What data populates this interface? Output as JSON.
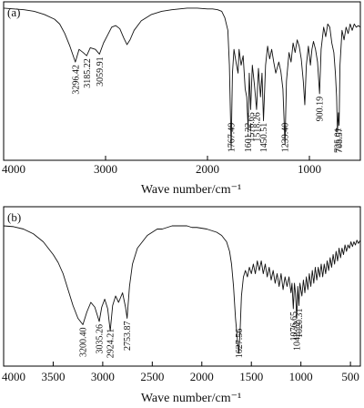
{
  "chart_data": [
    {
      "type": "line",
      "panel_label": "(a)",
      "xlabel": "Wave number/cm⁻¹",
      "ylabel": "",
      "xlim": [
        4000,
        500
      ],
      "x_reversed": true,
      "xticks": [
        {
          "value": 4000,
          "label": "4000"
        },
        {
          "value": 3000,
          "label": "3000"
        },
        {
          "value": 2000,
          "label": "2000"
        },
        {
          "value": 1000,
          "label": "1000"
        }
      ],
      "grid": false,
      "ylim": [
        0,
        100
      ],
      "series": [
        {
          "points": [
            [
              4000,
              96
            ],
            [
              3900,
              95.5
            ],
            [
              3800,
              95
            ],
            [
              3700,
              94
            ],
            [
              3600,
              92
            ],
            [
              3500,
              89
            ],
            [
              3450,
              86
            ],
            [
              3400,
              80
            ],
            [
              3350,
              72
            ],
            [
              3296.42,
              62
            ],
            [
              3260,
              70
            ],
            [
              3220,
              68
            ],
            [
              3185.22,
              66
            ],
            [
              3150,
              71
            ],
            [
              3100,
              70
            ],
            [
              3059.91,
              67
            ],
            [
              3020,
              74
            ],
            [
              2980,
              79
            ],
            [
              2940,
              84
            ],
            [
              2900,
              85
            ],
            [
              2860,
              83
            ],
            [
              2820,
              77
            ],
            [
              2790,
              73
            ],
            [
              2760,
              76
            ],
            [
              2720,
              82
            ],
            [
              2650,
              88
            ],
            [
              2550,
              92
            ],
            [
              2450,
              94
            ],
            [
              2350,
              95
            ],
            [
              2200,
              96
            ],
            [
              2100,
              96
            ],
            [
              2000,
              95.5
            ],
            [
              1950,
              95.5
            ],
            [
              1900,
              95
            ],
            [
              1860,
              94
            ],
            [
              1830,
              90
            ],
            [
              1800,
              82
            ],
            [
              1785,
              60
            ],
            [
              1767.49,
              7
            ],
            [
              1755,
              55
            ],
            [
              1740,
              70
            ],
            [
              1720,
              62
            ],
            [
              1700,
              55
            ],
            [
              1690,
              70
            ],
            [
              1670,
              60
            ],
            [
              1650,
              66
            ],
            [
              1630,
              45
            ],
            [
              1615,
              40
            ],
            [
              1601.22,
              20
            ],
            [
              1590,
              55
            ],
            [
              1576.65,
              32
            ],
            [
              1560,
              60
            ],
            [
              1540,
              48
            ],
            [
              1518.26,
              32
            ],
            [
              1500,
              58
            ],
            [
              1480,
              40
            ],
            [
              1465,
              55
            ],
            [
              1450.51,
              25
            ],
            [
              1430,
              60
            ],
            [
              1410,
              72
            ],
            [
              1390,
              64
            ],
            [
              1370,
              70
            ],
            [
              1350,
              62
            ],
            [
              1330,
              55
            ],
            [
              1300,
              62
            ],
            [
              1280,
              56
            ],
            [
              1260,
              45
            ],
            [
              1239.4,
              10
            ],
            [
              1225,
              50
            ],
            [
              1200,
              68
            ],
            [
              1180,
              62
            ],
            [
              1160,
              74
            ],
            [
              1140,
              68
            ],
            [
              1120,
              76
            ],
            [
              1100,
              72
            ],
            [
              1080,
              64
            ],
            [
              1060,
              50
            ],
            [
              1045,
              35
            ],
            [
              1030,
              60
            ],
            [
              1010,
              72
            ],
            [
              990,
              60
            ],
            [
              975,
              70
            ],
            [
              960,
              75
            ],
            [
              940,
              70
            ],
            [
              920,
              62
            ],
            [
              900.19,
              42
            ],
            [
              885,
              70
            ],
            [
              860,
              84
            ],
            [
              840,
              78
            ],
            [
              820,
              86
            ],
            [
              800,
              84
            ],
            [
              780,
              74
            ],
            [
              760,
              68
            ],
            [
              745,
              55
            ],
            [
              733,
              40
            ],
            [
              725.01,
              18
            ],
            [
              715,
              30
            ],
            [
              708.57,
              22
            ],
            [
              700,
              60
            ],
            [
              680,
              82
            ],
            [
              660,
              76
            ],
            [
              640,
              84
            ],
            [
              620,
              80
            ],
            [
              600,
              86
            ],
            [
              580,
              82
            ],
            [
              560,
              86
            ],
            [
              540,
              84
            ],
            [
              520,
              85
            ],
            [
              500,
              84
            ]
          ]
        }
      ],
      "peak_labels": [
        {
          "x": 3296.42,
          "label": "3296.42"
        },
        {
          "x": 3185.22,
          "label": "3185.22"
        },
        {
          "x": 3059.91,
          "label": "3059.91"
        },
        {
          "x": 1767.49,
          "label": "1767.49"
        },
        {
          "x": 1601.22,
          "label": "1601.22"
        },
        {
          "x": 1576.65,
          "label": "1576.65"
        },
        {
          "x": 1518.26,
          "label": "1518.26"
        },
        {
          "x": 1450.51,
          "label": "1450.51"
        },
        {
          "x": 1239.4,
          "label": "1239.40"
        },
        {
          "x": 900.19,
          "label": "900.19"
        },
        {
          "x": 725.01,
          "label": "725.01"
        },
        {
          "x": 708.57,
          "label": "708.57"
        }
      ]
    },
    {
      "type": "line",
      "panel_label": "(b)",
      "xlabel": "Wave number/cm⁻¹",
      "ylabel": "",
      "xlim": [
        4000,
        400
      ],
      "x_reversed": true,
      "xticks": [
        {
          "value": 4000,
          "label": "4000"
        },
        {
          "value": 3500,
          "label": "3500"
        },
        {
          "value": 3000,
          "label": "3000"
        },
        {
          "value": 2500,
          "label": "2500"
        },
        {
          "value": 2000,
          "label": "2000"
        },
        {
          "value": 1500,
          "label": "1500"
        },
        {
          "value": 1000,
          "label": "1000"
        },
        {
          "value": 500,
          "label": "500"
        }
      ],
      "grid": false,
      "ylim": [
        0,
        100
      ],
      "series": [
        {
          "points": [
            [
              4000,
              88
            ],
            [
              3900,
              87.5
            ],
            [
              3800,
              86
            ],
            [
              3700,
              83
            ],
            [
              3600,
              78
            ],
            [
              3500,
              70
            ],
            [
              3450,
              65
            ],
            [
              3400,
              58
            ],
            [
              3350,
              48
            ],
            [
              3300,
              38
            ],
            [
              3250,
              30
            ],
            [
              3200.4,
              26
            ],
            [
              3160,
              34
            ],
            [
              3120,
              40
            ],
            [
              3080,
              37
            ],
            [
              3050,
              31
            ],
            [
              3035.26,
              28
            ],
            [
              3010,
              37
            ],
            [
              2980,
              42
            ],
            [
              2950,
              36
            ],
            [
              2924.21,
              22
            ],
            [
              2900,
              38
            ],
            [
              2870,
              44
            ],
            [
              2840,
              40
            ],
            [
              2800,
              46
            ],
            [
              2770,
              37
            ],
            [
              2753.87,
              30
            ],
            [
              2730,
              50
            ],
            [
              2700,
              64
            ],
            [
              2650,
              74
            ],
            [
              2600,
              78
            ],
            [
              2550,
              82
            ],
            [
              2500,
              84
            ],
            [
              2450,
              86
            ],
            [
              2400,
              86
            ],
            [
              2350,
              87
            ],
            [
              2300,
              88
            ],
            [
              2250,
              88
            ],
            [
              2200,
              88
            ],
            [
              2150,
              88
            ],
            [
              2100,
              87
            ],
            [
              2050,
              87
            ],
            [
              2000,
              86.5
            ],
            [
              1950,
              86
            ],
            [
              1900,
              85
            ],
            [
              1850,
              84
            ],
            [
              1800,
              82
            ],
            [
              1750,
              78
            ],
            [
              1720,
              72
            ],
            [
              1700,
              64
            ],
            [
              1680,
              50
            ],
            [
              1660,
              30
            ],
            [
              1640,
              16
            ],
            [
              1627.56,
              8
            ],
            [
              1615,
              20
            ],
            [
              1600,
              44
            ],
            [
              1580,
              56
            ],
            [
              1560,
              60
            ],
            [
              1540,
              56
            ],
            [
              1520,
              62
            ],
            [
              1500,
              58
            ],
            [
              1480,
              64
            ],
            [
              1460,
              58
            ],
            [
              1440,
              66
            ],
            [
              1420,
              60
            ],
            [
              1400,
              66
            ],
            [
              1380,
              58
            ],
            [
              1360,
              64
            ],
            [
              1340,
              56
            ],
            [
              1320,
              62
            ],
            [
              1300,
              54
            ],
            [
              1280,
              60
            ],
            [
              1260,
              52
            ],
            [
              1240,
              58
            ],
            [
              1220,
              50
            ],
            [
              1200,
              58
            ],
            [
              1180,
              48
            ],
            [
              1160,
              56
            ],
            [
              1140,
              50
            ],
            [
              1120,
              56
            ],
            [
              1100,
              46
            ],
            [
              1090,
              52
            ],
            [
              1076.65,
              36
            ],
            [
              1065,
              52
            ],
            [
              1055,
              46
            ],
            [
              1042.12,
              30
            ],
            [
              1032,
              50
            ],
            [
              1020.31,
              38
            ],
            [
              1010,
              52
            ],
            [
              990,
              44
            ],
            [
              975,
              54
            ],
            [
              960,
              46
            ],
            [
              945,
              56
            ],
            [
              930,
              48
            ],
            [
              915,
              58
            ],
            [
              900,
              50
            ],
            [
              885,
              60
            ],
            [
              870,
              52
            ],
            [
              855,
              62
            ],
            [
              840,
              54
            ],
            [
              825,
              62
            ],
            [
              810,
              56
            ],
            [
              795,
              64
            ],
            [
              780,
              56
            ],
            [
              765,
              64
            ],
            [
              750,
              58
            ],
            [
              735,
              66
            ],
            [
              720,
              60
            ],
            [
              705,
              68
            ],
            [
              690,
              62
            ],
            [
              675,
              70
            ],
            [
              660,
              64
            ],
            [
              645,
              72
            ],
            [
              630,
              66
            ],
            [
              615,
              74
            ],
            [
              600,
              68
            ],
            [
              585,
              74
            ],
            [
              570,
              70
            ],
            [
              555,
              76
            ],
            [
              540,
              72
            ],
            [
              525,
              76
            ],
            [
              510,
              74
            ],
            [
              495,
              78
            ],
            [
              480,
              75
            ],
            [
              465,
              78
            ],
            [
              450,
              76
            ],
            [
              435,
              79
            ],
            [
              420,
              77
            ],
            [
              400,
              79
            ]
          ]
        }
      ],
      "peak_labels": [
        {
          "x": 3200.4,
          "label": "3200.40"
        },
        {
          "x": 3035.26,
          "label": "3035.26"
        },
        {
          "x": 2924.21,
          "label": "2924.21"
        },
        {
          "x": 2753.87,
          "label": "2753.87"
        },
        {
          "x": 1627.56,
          "label": "1627.56"
        },
        {
          "x": 1076.65,
          "label": "1076.65"
        },
        {
          "x": 1042.12,
          "label": "1042.12"
        },
        {
          "x": 1020.31,
          "label": "1020.31"
        }
      ]
    }
  ]
}
